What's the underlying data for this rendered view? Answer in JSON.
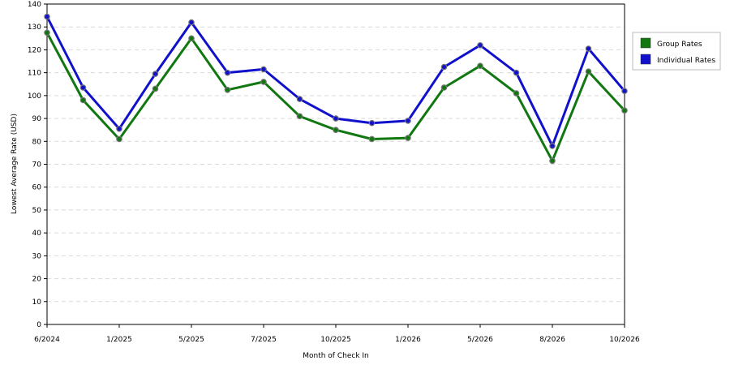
{
  "chart_data": {
    "type": "line",
    "xlabel": "Month of Check In",
    "ylabel": "Lowest Average Rate (USD)",
    "ylim": [
      0,
      140
    ],
    "yticks": [
      0,
      10,
      20,
      30,
      40,
      50,
      60,
      70,
      80,
      90,
      100,
      110,
      120,
      130,
      140
    ],
    "x_tick_labels": [
      "6/2024",
      "1/2025",
      "5/2025",
      "7/2025",
      "10/2025",
      "1/2026",
      "5/2026",
      "8/2026",
      "10/2026"
    ],
    "x_tick_positions": [
      0,
      2,
      4,
      6,
      8,
      10,
      12,
      14,
      16
    ],
    "grid": true,
    "legend_position": "top-right",
    "series": [
      {
        "name": "Group Rates",
        "color": "#117711",
        "values": [
          127.5,
          98,
          81,
          103,
          125,
          102.5,
          106,
          91,
          85,
          81,
          81.5,
          103.5,
          113,
          101,
          71.5,
          110.5,
          93.5
        ]
      },
      {
        "name": "Individual Rates",
        "color": "#1111cc",
        "values": [
          134.5,
          103.5,
          85.5,
          109.5,
          132,
          110,
          111.5,
          98.5,
          90,
          88,
          89,
          112.5,
          122,
          110,
          78,
          120.5,
          102
        ]
      }
    ]
  }
}
